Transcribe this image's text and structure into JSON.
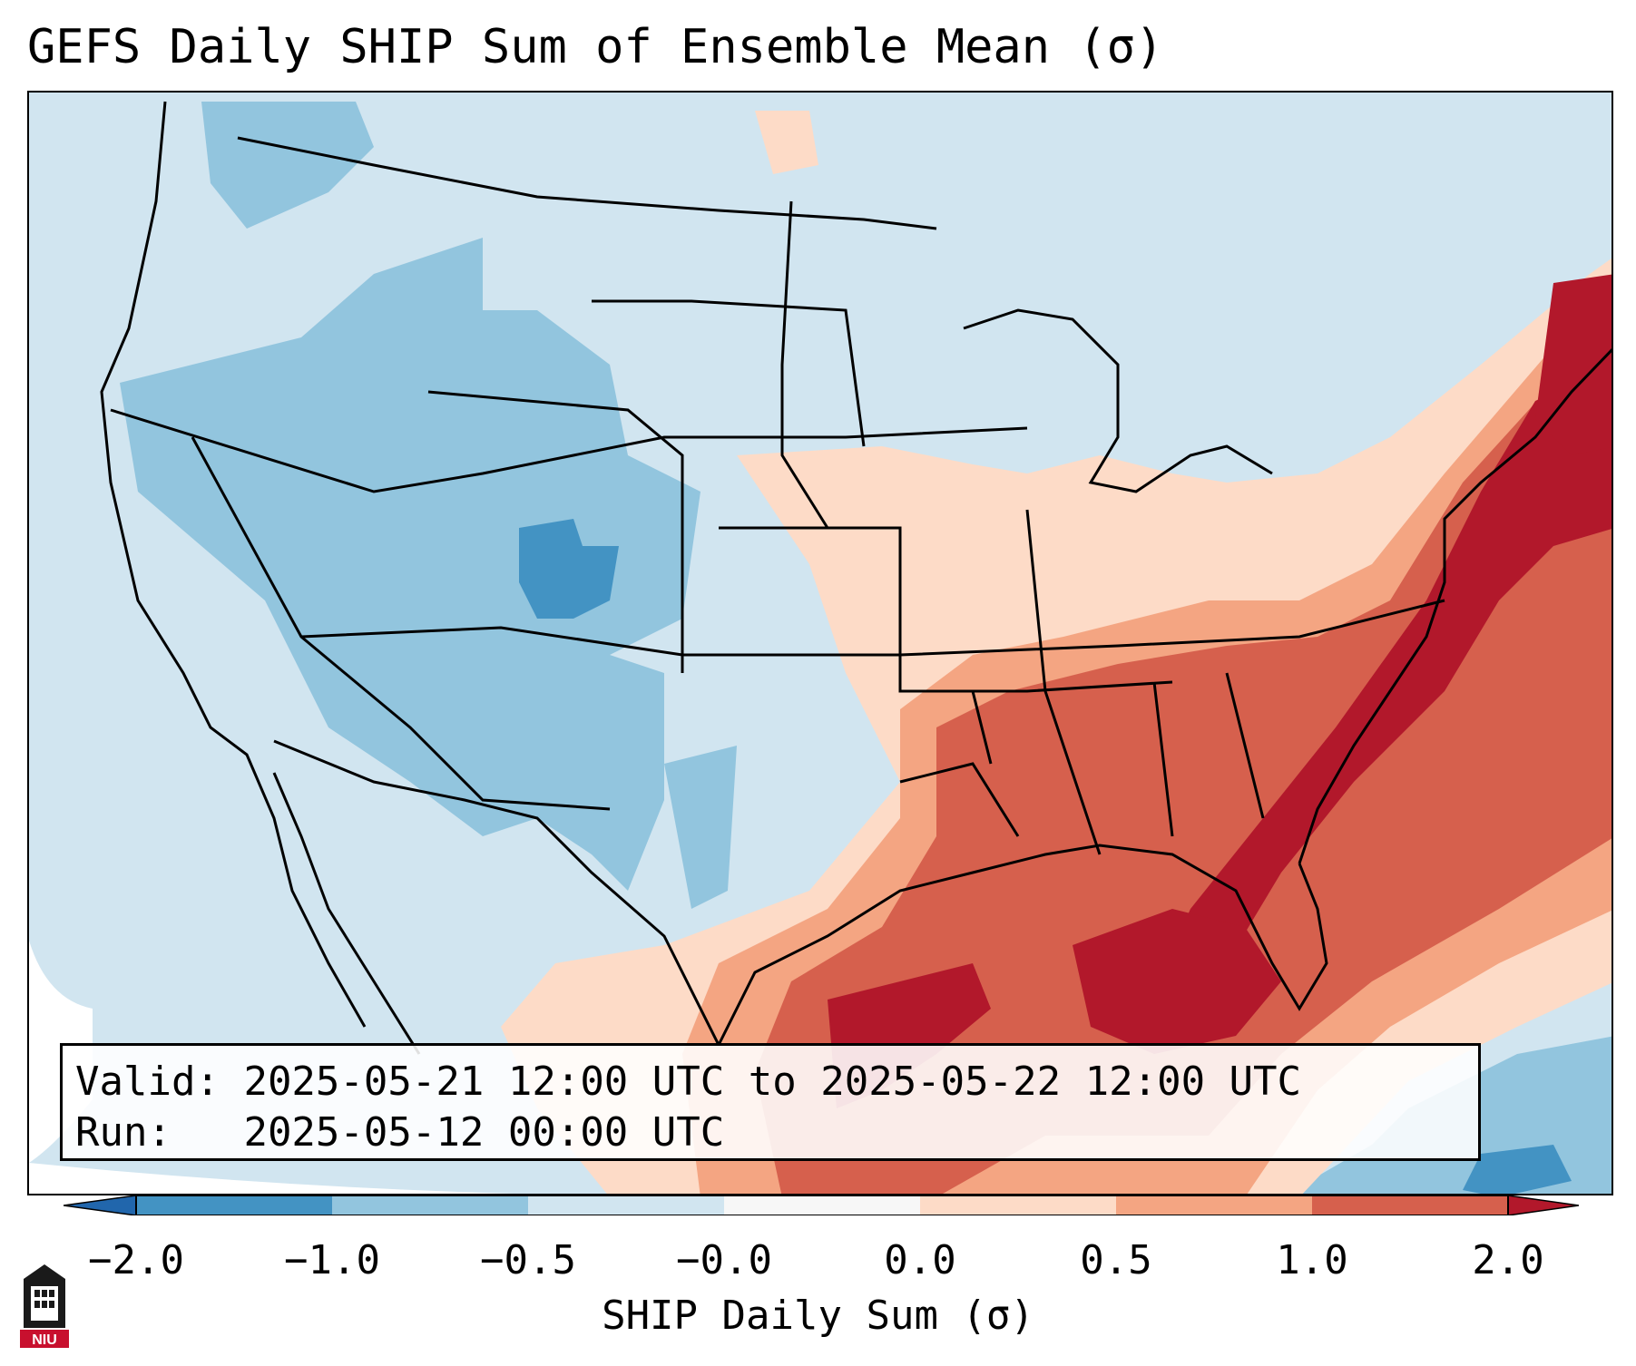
{
  "title": "GEFS Daily SHIP Sum of Ensemble Mean (σ)",
  "info": {
    "valid_label": "Valid:",
    "valid_value": "2025-05-21 12:00 UTC to 2025-05-22 12:00 UTC",
    "run_label": "Run:",
    "run_value": "2025-05-12 00:00 UTC"
  },
  "colorbar": {
    "label": "SHIP Daily Sum (σ)",
    "ticks": [
      "−2.0",
      "−1.0",
      "−0.5",
      "−0.0",
      "0.0",
      "0.5",
      "1.0",
      "2.0"
    ],
    "colors": [
      "#4393c3",
      "#92c5de",
      "#d1e5f0",
      "#fddbc7",
      "#f4a582",
      "#d6604d",
      "#b2182b"
    ],
    "under_color": "#2166ac",
    "over_color": "#b2182b"
  },
  "legend_scale": {
    "boundaries": [
      -2.0,
      -1.0,
      -0.5,
      0.0,
      0.5,
      1.0,
      2.0
    ]
  },
  "logo": {
    "text": "NIU",
    "icon": "niu-logo-icon"
  },
  "map_regions": [
    {
      "name": "west-region",
      "category": "-1.0 to -0.5"
    },
    {
      "name": "colorado-core",
      "category": "-2.0 to -1.0"
    },
    {
      "name": "southeast-region",
      "category": "1.0 to 2.0"
    },
    {
      "name": "gulf-coast",
      "category": "1.0 to 2.0"
    },
    {
      "name": "midwest-region",
      "category": "0.0 to 0.5"
    },
    {
      "name": "cuba-region",
      "category": "-1.0 to -0.5"
    }
  ]
}
